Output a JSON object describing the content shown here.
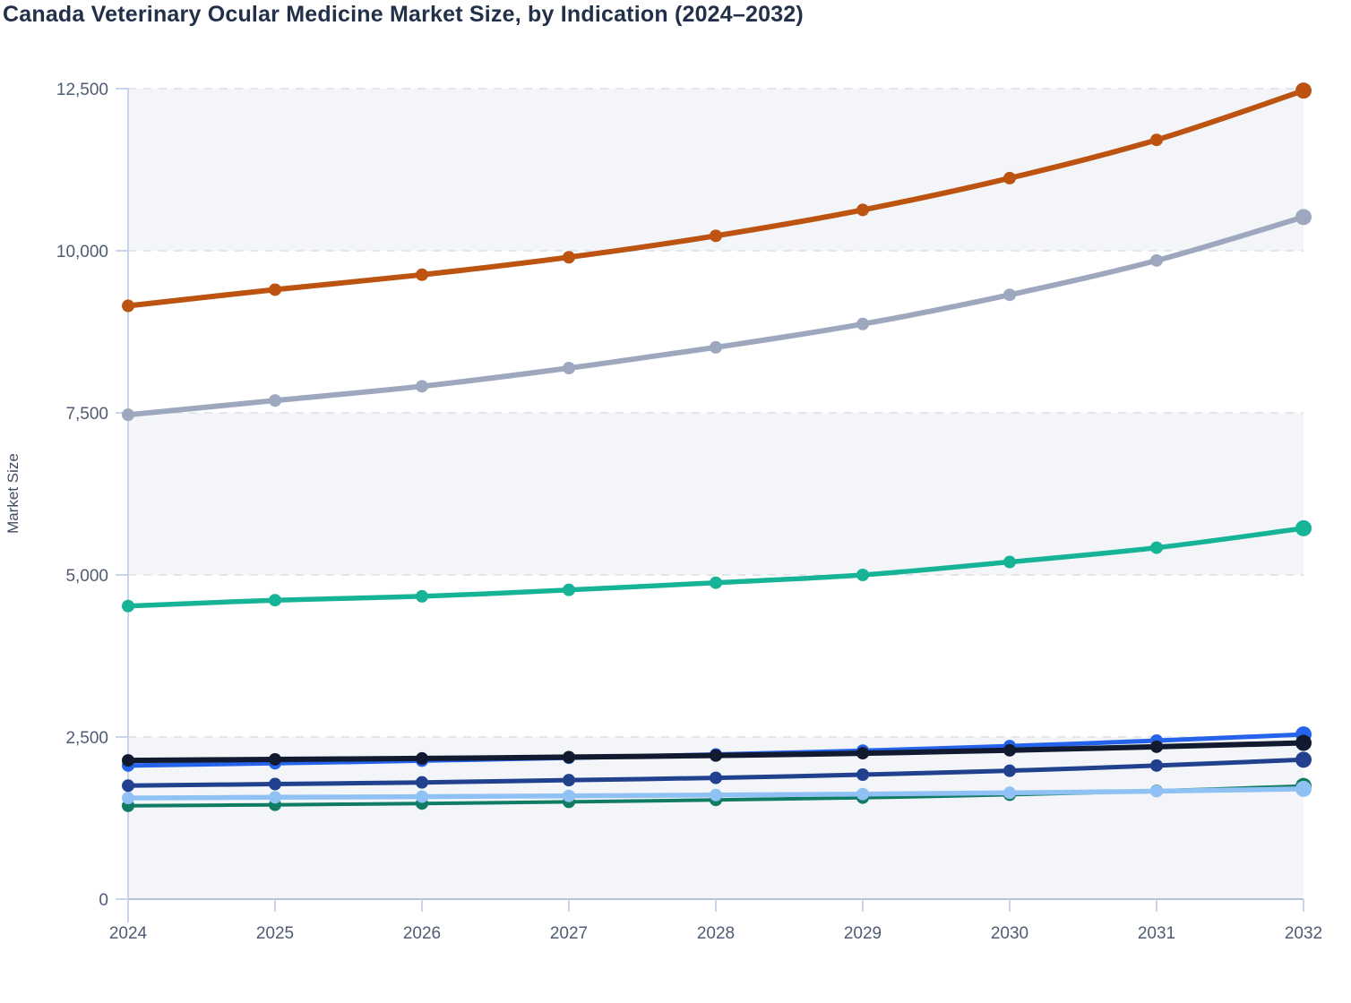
{
  "page": {
    "title": "Canada Veterinary Ocular Medicine Market Size, by Indication (2024–2032)"
  },
  "chart_data": {
    "type": "line",
    "title": "Canada Veterinary Ocular Medicine Market Size, by Indication (2024–2032)",
    "xlabel": "",
    "ylabel": "Market Size",
    "x": [
      2024,
      2025,
      2026,
      2027,
      2028,
      2029,
      2030,
      2031,
      2032
    ],
    "x_labels": [
      "2024",
      "2025",
      "2026",
      "2027",
      "2028",
      "2029",
      "2030",
      "2031",
      "2032"
    ],
    "ylim": [
      0,
      12500
    ],
    "yticks": {
      "values": [
        0,
        2500,
        5000,
        7500,
        10000,
        12500
      ],
      "labels": [
        "0",
        "2,500",
        "5,000",
        "7,500",
        "10,000",
        "12,500"
      ]
    },
    "grid": "horizontal-dashed",
    "legend": "none",
    "shaded_bands": [
      [
        0,
        2500
      ],
      [
        5000,
        7500
      ],
      [
        10000,
        12500
      ]
    ],
    "series": [
      {
        "name": "orange",
        "color": "#bc5310",
        "line_width": 6,
        "values": [
          9150,
          9400,
          9630,
          9900,
          10230,
          10630,
          11120,
          11710,
          12470
        ]
      },
      {
        "name": "slate-gray",
        "color": "#9da8bf",
        "line_width": 6,
        "values": [
          7470,
          7690,
          7910,
          8190,
          8510,
          8870,
          9320,
          9850,
          10520
        ]
      },
      {
        "name": "teal",
        "color": "#17b397",
        "line_width": 5.5,
        "values": [
          4520,
          4610,
          4670,
          4770,
          4880,
          5000,
          5200,
          5420,
          5720
        ]
      },
      {
        "name": "black-navy",
        "color": "#111a2e",
        "line_width": 6,
        "values": [
          2140,
          2155,
          2170,
          2190,
          2215,
          2250,
          2295,
          2350,
          2410
        ]
      },
      {
        "name": "blue",
        "color": "#2563eb",
        "line_width": 5,
        "values": [
          2060,
          2095,
          2135,
          2180,
          2230,
          2290,
          2360,
          2445,
          2540
        ]
      },
      {
        "name": "navy",
        "color": "#21418f",
        "line_width": 5,
        "values": [
          1750,
          1775,
          1800,
          1835,
          1870,
          1920,
          1980,
          2060,
          2150
        ]
      },
      {
        "name": "light-blue",
        "color": "#90c1f4",
        "line_width": 5.5,
        "values": [
          1560,
          1570,
          1580,
          1592,
          1605,
          1620,
          1640,
          1665,
          1700
        ]
      },
      {
        "name": "green",
        "color": "#107c64",
        "line_width": 4,
        "values": [
          1440,
          1455,
          1475,
          1500,
          1530,
          1565,
          1610,
          1670,
          1745
        ]
      }
    ],
    "style": {
      "band_fill": "#f3f5f9",
      "gridline_color": "#e2e5eb",
      "axis_line_color": "#c9d3e9",
      "baseline_color": "#b7c1d6",
      "tick_label_color": "#4f5b72",
      "axis_label_color": "#404c61",
      "title_color": "#22304a",
      "point_radius": 7,
      "end_point_radius": 9
    }
  }
}
